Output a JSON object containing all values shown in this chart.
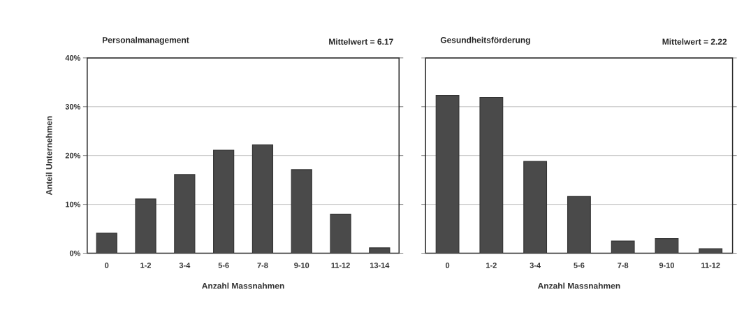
{
  "chart_data": [
    {
      "type": "bar",
      "title": "Personalmanagement",
      "annotations": [
        "Mittelwert = 6.17"
      ],
      "xlabel": "Anzahl Massnahmen",
      "ylabel": "Anteil Unternehmen",
      "categories": [
        "0",
        "1-2",
        "3-4",
        "5-6",
        "7-8",
        "9-10",
        "11-12",
        "13-14"
      ],
      "values": [
        4.1,
        11.1,
        16.1,
        21.1,
        22.2,
        17.1,
        8.0,
        1.1
      ],
      "color": "#4a4a4a",
      "ylim": [
        0,
        40
      ],
      "yticks": [
        {
          "value": 0,
          "label": "0%"
        },
        {
          "value": 10,
          "label": "10%"
        },
        {
          "value": 20,
          "label": "20%"
        },
        {
          "value": 30,
          "label": "30%"
        },
        {
          "value": 40,
          "label": "40%"
        }
      ],
      "grid": "y"
    },
    {
      "type": "bar",
      "title": "Gesundheitsförderung",
      "annotations": [
        "Mittelwert = 2.22"
      ],
      "xlabel": "Anzahl Massnahmen",
      "categories": [
        "0",
        "1-2",
        "3-4",
        "5-6",
        "7-8",
        "9-10",
        "11-12"
      ],
      "values": [
        32.3,
        31.9,
        18.8,
        11.6,
        2.5,
        3.0,
        0.9
      ],
      "color": "#4a4a4a",
      "ylim": [
        0,
        40
      ],
      "yticks": [
        0,
        10,
        20,
        30,
        40
      ],
      "grid": "y",
      "tick_labels": "x"
    }
  ]
}
